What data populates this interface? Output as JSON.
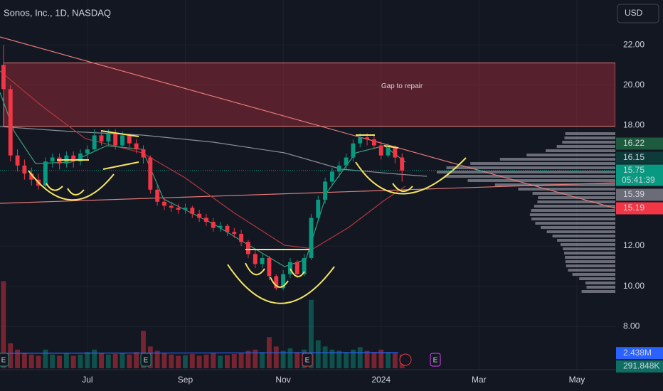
{
  "header": {
    "symbol": "Sonos, Inc., 1D, NASDAQ",
    "currency": "USD"
  },
  "chart_data": {
    "type": "candlestick",
    "categories": [
      null,
      null,
      null,
      null,
      null,
      null,
      null,
      null,
      null,
      null,
      null,
      null,
      "Jul",
      null,
      null,
      null,
      null,
      null,
      null,
      null,
      null,
      null,
      null,
      null,
      null,
      null,
      "Sep",
      null,
      null,
      null,
      null,
      null,
      null,
      null,
      null,
      null,
      null,
      null,
      null,
      null,
      "Nov",
      null,
      null,
      null,
      null,
      null,
      null,
      null,
      null,
      null,
      null,
      null,
      null,
      null,
      "2024",
      null,
      null,
      null,
      null,
      null,
      null,
      null,
      null,
      null,
      null,
      null,
      null,
      null,
      "Mar",
      null,
      null,
      null,
      null,
      null,
      null,
      null,
      null,
      null,
      null,
      null,
      null,
      null,
      "May",
      null,
      null,
      null,
      null,
      null
    ],
    "open": [
      21.0,
      19.8,
      16.5,
      16.0,
      15.6,
      15.3,
      15.0,
      16.2,
      16.4,
      16.1,
      16.5,
      16.2,
      16.6,
      16.8,
      17.5,
      17.2,
      17.6,
      17.0,
      17.5,
      17.1,
      16.8,
      16.4,
      14.8,
      14.2,
      14.0,
      13.9,
      13.8,
      13.9,
      13.6,
      13.4,
      13.2,
      12.9,
      13.0,
      12.7,
      12.6,
      12.2,
      11.6,
      11.1,
      11.4,
      10.5,
      9.9,
      10.6,
      11.2,
      10.6,
      11.4,
      13.4,
      14.3,
      15.2,
      15.7,
      16.0,
      16.4,
      17.1,
      17.4,
      17.3,
      17.0,
      16.5,
      16.9,
      16.4,
      null,
      null,
      null,
      null,
      null,
      null,
      null,
      null,
      null,
      null,
      null,
      null,
      null,
      null,
      null,
      null,
      null,
      null,
      null,
      null,
      null,
      null,
      null,
      null,
      null,
      null,
      null,
      null,
      null,
      null
    ],
    "high": [
      22.0,
      20.0,
      16.8,
      16.3,
      15.9,
      15.6,
      16.4,
      16.6,
      16.6,
      16.7,
      16.7,
      16.8,
      17.0,
      17.8,
      17.7,
      17.8,
      17.8,
      17.7,
      17.6,
      17.3,
      17.0,
      16.5,
      15.0,
      14.4,
      14.2,
      14.1,
      14.1,
      14.0,
      13.8,
      13.6,
      13.4,
      13.2,
      13.1,
      12.9,
      12.8,
      12.3,
      11.8,
      11.6,
      11.5,
      10.6,
      10.8,
      11.4,
      11.3,
      11.6,
      13.6,
      14.5,
      15.4,
      15.9,
      16.2,
      16.6,
      17.3,
      17.6,
      17.6,
      17.5,
      17.2,
      17.1,
      17.0,
      16.6,
      null,
      null,
      null,
      null,
      null,
      null,
      null,
      null,
      null,
      null,
      null,
      null,
      null,
      null,
      null,
      null,
      null,
      null,
      null,
      null,
      null,
      null,
      null,
      null,
      null,
      null,
      null,
      null,
      null,
      null
    ],
    "low": [
      19.4,
      16.2,
      15.7,
      15.3,
      15.0,
      14.8,
      14.9,
      15.9,
      15.8,
      15.9,
      15.9,
      16.0,
      16.3,
      16.7,
      17.0,
      17.0,
      16.8,
      16.9,
      16.9,
      16.6,
      16.1,
      14.6,
      14.0,
      13.8,
      13.7,
      13.6,
      13.6,
      13.4,
      13.2,
      13.0,
      12.7,
      12.7,
      12.5,
      12.4,
      12.0,
      11.4,
      10.9,
      10.9,
      10.3,
      9.8,
      9.8,
      10.4,
      10.4,
      10.5,
      11.3,
      13.2,
      14.1,
      15.0,
      15.4,
      15.8,
      16.2,
      16.9,
      17.0,
      16.8,
      16.3,
      16.4,
      16.1,
      15.2,
      null,
      null,
      null,
      null,
      null,
      null,
      null,
      null,
      null,
      null,
      null,
      null,
      null,
      null,
      null,
      null,
      null,
      null,
      null,
      null,
      null,
      null,
      null,
      null,
      null,
      null,
      null,
      null,
      null,
      null
    ],
    "close": [
      19.8,
      16.5,
      16.0,
      15.6,
      15.3,
      15.0,
      16.2,
      16.4,
      16.1,
      16.5,
      16.2,
      16.6,
      16.8,
      17.5,
      17.2,
      17.6,
      17.0,
      17.5,
      17.1,
      16.8,
      16.4,
      14.8,
      14.2,
      14.0,
      13.9,
      13.8,
      13.9,
      13.6,
      13.4,
      13.2,
      12.9,
      13.0,
      12.7,
      12.6,
      12.2,
      11.6,
      11.1,
      11.4,
      10.5,
      9.9,
      10.6,
      11.2,
      10.6,
      11.4,
      13.4,
      14.3,
      15.2,
      15.7,
      16.0,
      16.4,
      17.1,
      17.4,
      17.3,
      17.0,
      16.5,
      16.9,
      16.4,
      15.75,
      null,
      null,
      null,
      null,
      null,
      null,
      null,
      null,
      null,
      null,
      null,
      null,
      null,
      null,
      null,
      null,
      null,
      null,
      null,
      null,
      null,
      null,
      null,
      null,
      null,
      null,
      null,
      null,
      null,
      null
    ],
    "volume": [
      14,
      4,
      3,
      2.5,
      2.2,
      2,
      3,
      2.2,
      2,
      2.4,
      2,
      2.2,
      2.6,
      3,
      2.5,
      2.2,
      2.3,
      2.4,
      2.2,
      2.6,
      6,
      3.5,
      2.8,
      2.4,
      2.2,
      2,
      2.1,
      2.3,
      2,
      2.2,
      2.4,
      2,
      2.1,
      2.3,
      2.5,
      2.8,
      3,
      2.6,
      5,
      3.5,
      2.8,
      3.2,
      2.6,
      3,
      11,
      4.5,
      3.5,
      3,
      2.8,
      2.6,
      3,
      3.4,
      2.8,
      2.6,
      3,
      2.6,
      2.4,
      2.2,
      null,
      null,
      null,
      null,
      null,
      null,
      null,
      null,
      null,
      null,
      null,
      null,
      null,
      null,
      null,
      null,
      null,
      null,
      null,
      null,
      null,
      null,
      null,
      null,
      null,
      null,
      null,
      null,
      null,
      null
    ],
    "up_color": "#089981",
    "down_color": "#f23645",
    "ylim": [
      5.85,
      24.23
    ],
    "yticks": [
      {
        "value": 8,
        "label": "8.00"
      },
      {
        "value": 10,
        "label": "10.00"
      },
      {
        "value": 12,
        "label": "12.00"
      },
      {
        "value": 18,
        "label": "18.00"
      },
      {
        "value": 20,
        "label": "20.00"
      },
      {
        "value": 22,
        "label": "22.00"
      }
    ],
    "grid": true,
    "gap_zone": [
      17.95,
      21.1
    ],
    "gap_label": "Gap to repair",
    "price_badges": [
      {
        "value": 16.22,
        "label": "16.22",
        "color": "#1e5b3e"
      },
      {
        "value": 16.15,
        "label": "16.15",
        "color": "#0e3b3a"
      },
      {
        "value": 15.75,
        "label": "15.75",
        "color": "#089981"
      },
      {
        "value": 15.39,
        "label": "15.39",
        "color": "#6a6d78"
      },
      {
        "value": 15.19,
        "label": "15.19",
        "color": "#f23645"
      }
    ],
    "countdown": "05:41:39",
    "volume_badges": [
      {
        "value": 2.438,
        "label": "2.438M",
        "color": "#2962ff"
      },
      {
        "value": 0.291848,
        "label": "291.848K",
        "color": "#0e6e63"
      }
    ],
    "event_label": "E"
  }
}
